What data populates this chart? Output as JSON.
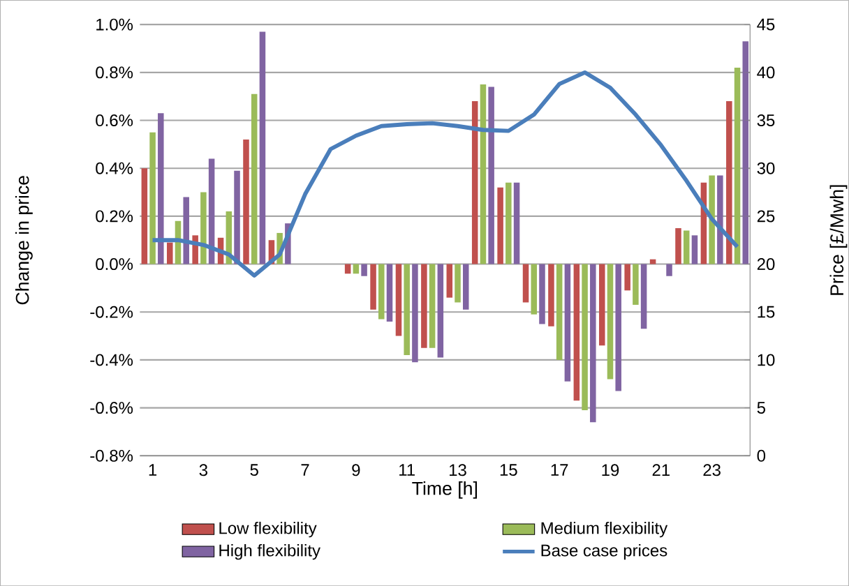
{
  "chart_data": {
    "type": "bar",
    "xlabel": "Time [h]",
    "ylabel": "Change in price",
    "y2label": "Price [£/Mwh]",
    "categories": [
      "1",
      null,
      "3",
      null,
      "5",
      null,
      "7",
      null,
      "9",
      null,
      "11",
      null,
      "13",
      null,
      "15",
      null,
      "17",
      null,
      "19",
      null,
      "21",
      null,
      "23",
      null
    ],
    "series": [
      {
        "name": "Low flexibility",
        "color": "#c0504d",
        "values": [
          0.4,
          0.09,
          0.12,
          0.11,
          0.52,
          0.1,
          0,
          0,
          -0.04,
          -0.19,
          -0.3,
          -0.35,
          -0.14,
          0.68,
          0.32,
          -0.16,
          -0.26,
          -0.57,
          -0.34,
          -0.11,
          0.02,
          0.15,
          0.34,
          0.68
        ]
      },
      {
        "name": "Medium flexibility",
        "color": "#9bbb59",
        "values": [
          0.55,
          0.18,
          0.3,
          0.22,
          0.71,
          0.13,
          0,
          0,
          -0.04,
          -0.23,
          -0.38,
          -0.35,
          -0.16,
          0.75,
          0.34,
          -0.21,
          -0.4,
          -0.61,
          -0.48,
          -0.17,
          0,
          0.14,
          0.37,
          0.82
        ]
      },
      {
        "name": "High flexibility",
        "color": "#8064a2",
        "values": [
          0.63,
          0.28,
          0.44,
          0.39,
          0.97,
          0.17,
          0,
          0,
          -0.05,
          -0.24,
          -0.41,
          -0.39,
          -0.19,
          0.74,
          0.34,
          -0.25,
          -0.49,
          -0.66,
          -0.53,
          -0.27,
          -0.05,
          0.12,
          0.37,
          0.93
        ]
      },
      {
        "name": "Base case prices",
        "color": "#4a7ebb",
        "type": "line",
        "axis": "y2",
        "values": [
          22.5,
          22.5,
          22.0,
          21.0,
          18.8,
          21.0,
          27.3,
          32.0,
          33.4,
          34.4,
          34.6,
          34.7,
          34.4,
          34.0,
          33.9,
          35.6,
          38.8,
          40.0,
          38.4,
          35.6,
          32.4,
          28.7,
          24.7,
          21.8
        ]
      }
    ],
    "ylim": [
      -0.8,
      1.0
    ],
    "yticks": [
      {
        "value": -0.8,
        "label": "-0.8%"
      },
      {
        "value": -0.6,
        "label": "-0.6%"
      },
      {
        "value": -0.4,
        "label": "-0.4%"
      },
      {
        "value": -0.2,
        "label": "-0.2%"
      },
      {
        "value": 0,
        "label": "0.0%"
      },
      {
        "value": 0.2,
        "label": "0.2%"
      },
      {
        "value": 0.4,
        "label": "0.4%"
      },
      {
        "value": 0.6,
        "label": "0.6%"
      },
      {
        "value": 0.8,
        "label": "0.8%"
      },
      {
        "value": 1.0,
        "label": "1.0%"
      }
    ],
    "y2lim": [
      0,
      45
    ],
    "y2ticks": [
      0,
      5,
      10,
      15,
      20,
      25,
      30,
      35,
      40,
      45
    ],
    "grid": "y",
    "legend": "bottom"
  }
}
